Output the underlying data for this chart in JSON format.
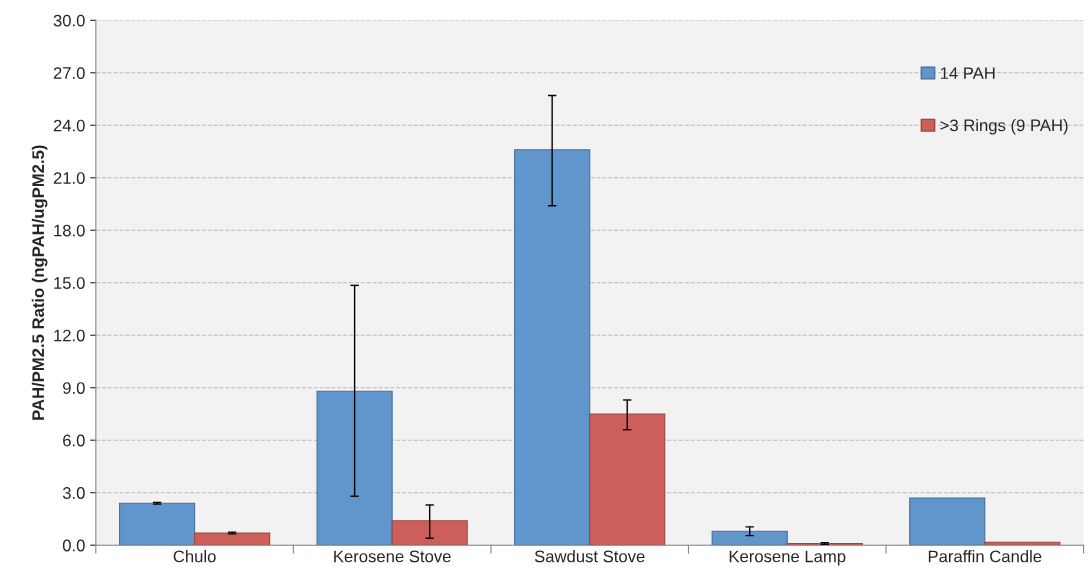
{
  "chart_data": {
    "type": "bar",
    "ylabel": "PAH/PM2.5 Ratio (ngPAH/ugPM2.5)",
    "categories": [
      "Chulo",
      "Kerosene Stove",
      "Sawdust Stove",
      "Kerosene Lamp",
      "Paraffin Candle"
    ],
    "series": [
      {
        "name": "14 PAH",
        "color": "#6096cc",
        "values": [
          2.4,
          8.8,
          22.6,
          0.8,
          2.7
        ],
        "errors": [
          [
            2.35,
            2.45
          ],
          [
            2.8,
            14.85
          ],
          [
            19.4,
            25.7
          ],
          [
            0.55,
            1.05
          ],
          null
        ]
      },
      {
        "name": ">3 Rings (9 PAH)",
        "color": "#cd5f5a",
        "values": [
          0.7,
          1.4,
          7.5,
          0.1,
          0.17
        ],
        "errors": [
          [
            0.65,
            0.75
          ],
          [
            0.4,
            2.3
          ],
          [
            6.6,
            8.3
          ],
          [
            0.05,
            0.15
          ],
          null
        ]
      }
    ],
    "ylim": [
      0,
      30
    ],
    "yticks": [
      {
        "value": 0,
        "label": "0.0"
      },
      {
        "value": 3,
        "label": "3.0"
      },
      {
        "value": 6,
        "label": "6.0"
      },
      {
        "value": 9,
        "label": "9.0"
      },
      {
        "value": 12,
        "label": "12.0"
      },
      {
        "value": 15,
        "label": "15.0"
      },
      {
        "value": 18,
        "label": "18.0"
      },
      {
        "value": 21,
        "label": "21.0"
      },
      {
        "value": 24,
        "label": "24.0"
      },
      {
        "value": 27,
        "label": "27.0"
      },
      {
        "value": 30,
        "label": "30.0"
      }
    ],
    "grid": "y",
    "legend": "top right"
  }
}
